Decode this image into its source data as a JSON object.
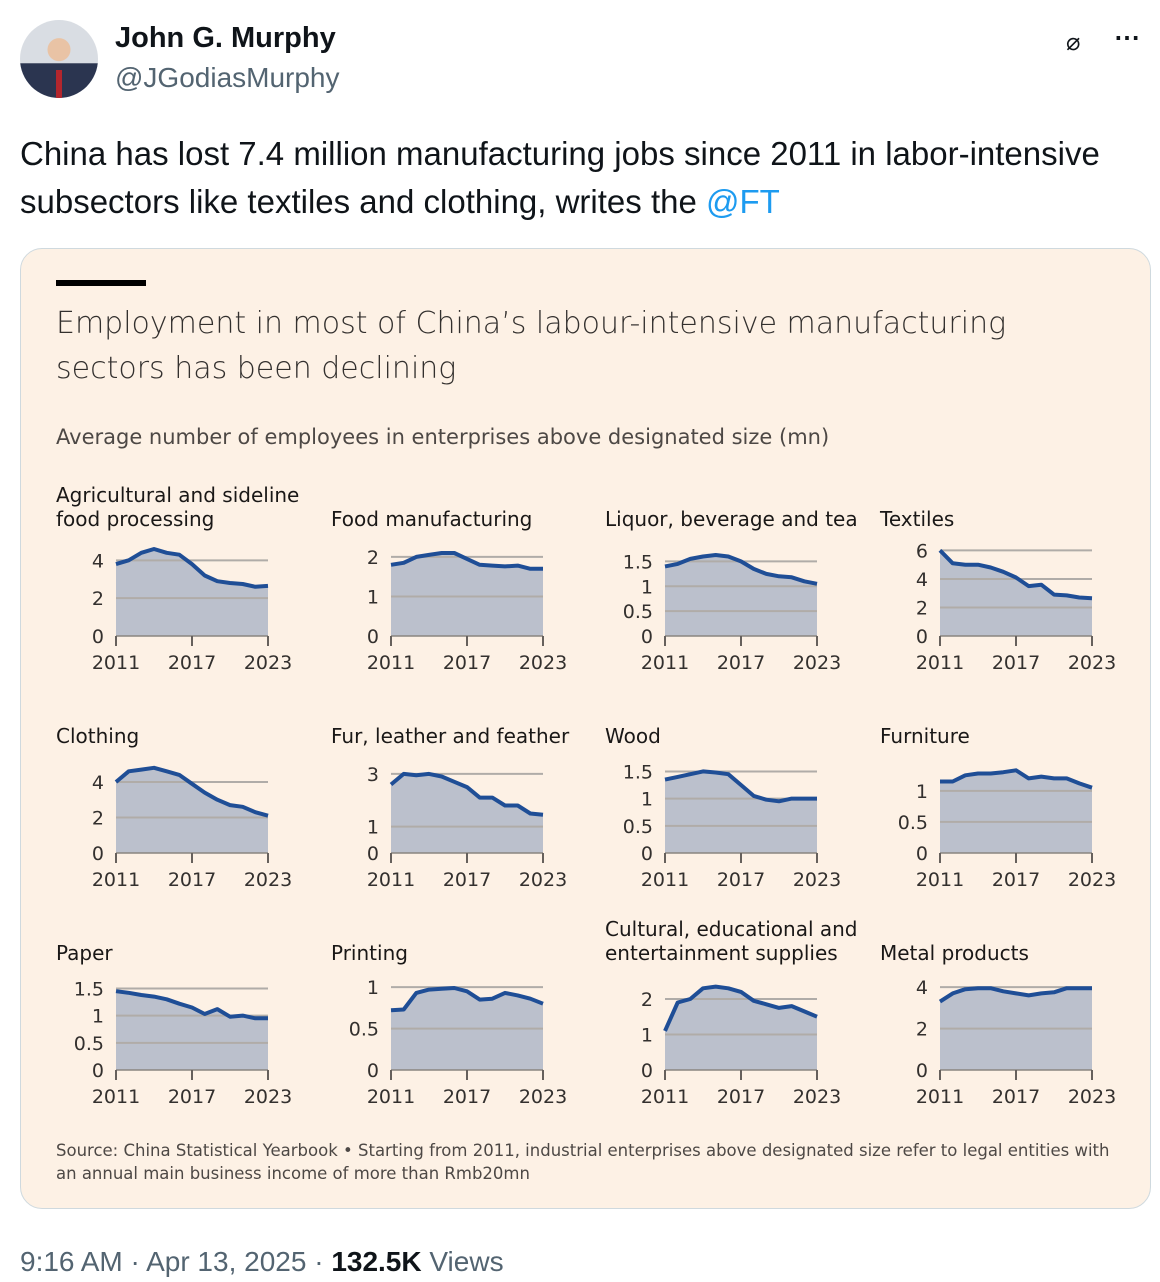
{
  "tweet": {
    "author_name": "John G. Murphy",
    "author_handle": "@JGodiasMurphy",
    "text": "China has lost 7.4 million manufacturing jobs since 2011 in labor-intensive subsectors like textiles and clothing, writes the ",
    "mention": "@FT",
    "time": "9:16 AM",
    "sep1": " · ",
    "date": "Apr 13, 2025",
    "sep2": " · ",
    "views_count": "132.5K",
    "views_label": " Views",
    "more_icon": "⋯",
    "grok_icon": "⌀"
  },
  "chart_data": {
    "type": "area",
    "title": "Employment in most of China’s labour-intensive manufacturing sectors has been declining",
    "subtitle": "Average number of employees in enterprises above designated size (mn)",
    "source": "Source: China Statistical Yearbook • Starting from 2011, industrial enterprises above designated size refer to legal entities with an annual main business income of more than Rmb20mn",
    "x": [
      2011,
      2012,
      2013,
      2014,
      2015,
      2016,
      2017,
      2018,
      2019,
      2020,
      2021,
      2022,
      2023
    ],
    "xticks": [
      "2011",
      "2017",
      "2023"
    ],
    "colors": {
      "line": "#1f4e96",
      "fill": "#bbc0cc",
      "grid": "#b0aca8",
      "background": "#fdf1e5"
    },
    "panels": [
      {
        "title": "Agricultural and sideline food processing",
        "ymax": 4.6,
        "yticks": [
          "0",
          "2",
          "4"
        ],
        "values": [
          3.8,
          4.0,
          4.4,
          4.6,
          4.4,
          4.3,
          3.8,
          3.2,
          2.9,
          2.8,
          2.75,
          2.6,
          2.65
        ]
      },
      {
        "title": "Food manufacturing",
        "ymax": 2.2,
        "yticks": [
          "0",
          "1",
          "2"
        ],
        "values": [
          1.8,
          1.85,
          2.0,
          2.05,
          2.1,
          2.1,
          1.95,
          1.8,
          1.78,
          1.76,
          1.78,
          1.7,
          1.7
        ]
      },
      {
        "title": "Liquor, beverage and tea",
        "ymax": 1.75,
        "yticks": [
          "0",
          "0.5",
          "1",
          "1.5"
        ],
        "values": [
          1.4,
          1.45,
          1.55,
          1.6,
          1.63,
          1.6,
          1.5,
          1.35,
          1.25,
          1.2,
          1.18,
          1.1,
          1.05
        ]
      },
      {
        "title": "Textiles",
        "ymax": 6.1,
        "yticks": [
          "0",
          "2",
          "4",
          "6"
        ],
        "values": [
          6.0,
          5.1,
          5.0,
          5.0,
          4.8,
          4.5,
          4.1,
          3.5,
          3.6,
          2.9,
          2.85,
          2.7,
          2.65
        ]
      },
      {
        "title": "Clothing",
        "ymax": 4.9,
        "yticks": [
          "0",
          "2",
          "4"
        ],
        "values": [
          4.0,
          4.6,
          4.7,
          4.8,
          4.6,
          4.4,
          3.9,
          3.4,
          3.0,
          2.7,
          2.6,
          2.3,
          2.1
        ]
      },
      {
        "title": "Fur, leather and feather",
        "ymax": 3.3,
        "yticks": [
          "0",
          "1",
          "3"
        ],
        "values": [
          2.6,
          3.0,
          2.95,
          3.0,
          2.9,
          2.7,
          2.5,
          2.1,
          2.1,
          1.8,
          1.8,
          1.5,
          1.45
        ]
      },
      {
        "title": "Wood",
        "ymax": 1.6,
        "yticks": [
          "0",
          "0.5",
          "1",
          "1.5"
        ],
        "values": [
          1.35,
          1.4,
          1.45,
          1.5,
          1.48,
          1.45,
          1.25,
          1.05,
          0.98,
          0.95,
          1.0,
          1.0,
          1.0
        ]
      },
      {
        "title": "Furniture",
        "ymax": 1.4,
        "yticks": [
          "0",
          "0.5",
          "1"
        ],
        "values": [
          1.15,
          1.15,
          1.25,
          1.28,
          1.28,
          1.3,
          1.33,
          1.2,
          1.23,
          1.2,
          1.2,
          1.12,
          1.05
        ]
      },
      {
        "title": "Paper",
        "ymax": 1.6,
        "yticks": [
          "0",
          "0.5",
          "1",
          "1.5"
        ],
        "values": [
          1.45,
          1.42,
          1.38,
          1.35,
          1.3,
          1.22,
          1.15,
          1.03,
          1.12,
          0.98,
          1.0,
          0.95,
          0.95
        ]
      },
      {
        "title": "Printing",
        "ymax": 1.05,
        "yticks": [
          "0",
          "0.5",
          "1"
        ],
        "values": [
          0.72,
          0.73,
          0.93,
          0.97,
          0.98,
          0.99,
          0.95,
          0.85,
          0.86,
          0.93,
          0.9,
          0.86,
          0.8
        ]
      },
      {
        "title": "Cultural, educational and entertainment supplies",
        "ymax": 2.45,
        "yticks": [
          "0",
          "1",
          "2"
        ],
        "values": [
          1.1,
          1.9,
          2.0,
          2.3,
          2.35,
          2.3,
          2.2,
          1.95,
          1.85,
          1.75,
          1.8,
          1.65,
          1.5
        ]
      },
      {
        "title": "Metal products",
        "ymax": 4.2,
        "yticks": [
          "0",
          "2",
          "4"
        ],
        "values": [
          3.3,
          3.7,
          3.9,
          3.95,
          3.95,
          3.8,
          3.7,
          3.6,
          3.7,
          3.75,
          3.95,
          3.95,
          3.95
        ]
      }
    ]
  }
}
